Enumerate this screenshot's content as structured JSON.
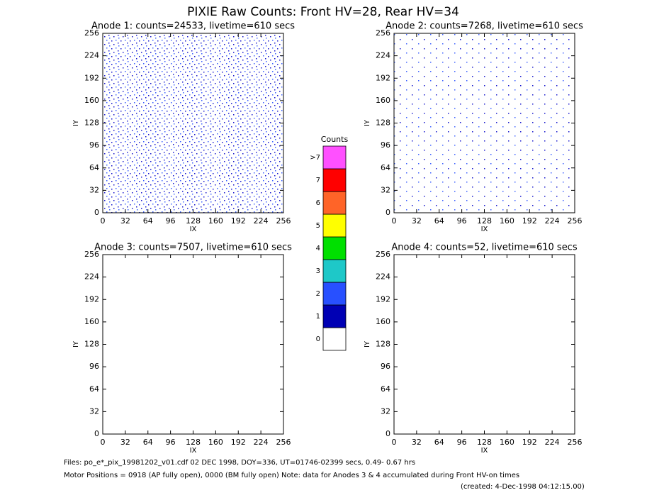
{
  "title": "PIXIE Raw Counts:  Front HV=28, Rear HV=34",
  "chart_data": [
    {
      "type": "heatmap",
      "title": "Anode 1: counts=24533, livetime=610 secs",
      "xlabel": "IX",
      "ylabel": "IY",
      "xlim": [
        0,
        256
      ],
      "ylim": [
        0,
        256
      ],
      "xticks": [
        0,
        32,
        64,
        96,
        128,
        160,
        192,
        224,
        256
      ],
      "yticks": [
        0,
        32,
        64,
        96,
        128,
        160,
        192,
        224,
        256
      ]
    },
    {
      "type": "heatmap",
      "title": "Anode 2: counts=7268, livetime=610 secs",
      "xlabel": "IX",
      "ylabel": "IY",
      "xlim": [
        0,
        256
      ],
      "ylim": [
        0,
        256
      ],
      "xticks": [
        0,
        32,
        64,
        96,
        128,
        160,
        192,
        224,
        256
      ],
      "yticks": [
        0,
        32,
        64,
        96,
        128,
        160,
        192,
        224,
        256
      ]
    },
    {
      "type": "heatmap",
      "title": "Anode 3: counts=7507, livetime=610 secs",
      "xlabel": "IX",
      "ylabel": "IY",
      "xlim": [
        0,
        256
      ],
      "ylim": [
        0,
        256
      ],
      "xticks": [
        0,
        32,
        64,
        96,
        128,
        160,
        192,
        224,
        256
      ],
      "yticks": [
        0,
        32,
        64,
        96,
        128,
        160,
        192,
        224,
        256
      ]
    },
    {
      "type": "heatmap",
      "title": "Anode 4: counts=52, livetime=610 secs",
      "xlabel": "IX",
      "ylabel": "IY",
      "xlim": [
        0,
        256
      ],
      "ylim": [
        0,
        256
      ],
      "xticks": [
        0,
        32,
        64,
        96,
        128,
        160,
        192,
        224,
        256
      ],
      "yticks": [
        0,
        32,
        64,
        96,
        128,
        160,
        192,
        224,
        256
      ]
    },
    {
      "type": "colorbar",
      "title": "Counts",
      "categories": [
        "0",
        "1",
        "2",
        "3",
        "4",
        "5",
        "6",
        "7",
        ">7"
      ],
      "colors": [
        "#ffffff",
        "#0000b4",
        "#2850ff",
        "#1ec8c8",
        "#00e000",
        "#ffff00",
        "#ff6428",
        "#ff0000",
        "#ff50ff"
      ]
    }
  ],
  "footer": {
    "files": "Files: po_e*_pix_19981202_v01.cdf    02 DEC 1998, DOY=336, UT=01746-02399 secs,  0.49- 0.67 hrs",
    "motor": "Motor Positions = 0918 (AP fully open), 0000 (BM fully open)    Note: data for Anodes 3 & 4 accumulated during Front HV-on times",
    "created": "(created:  4-Dec-1998 04:12:15.00)"
  }
}
